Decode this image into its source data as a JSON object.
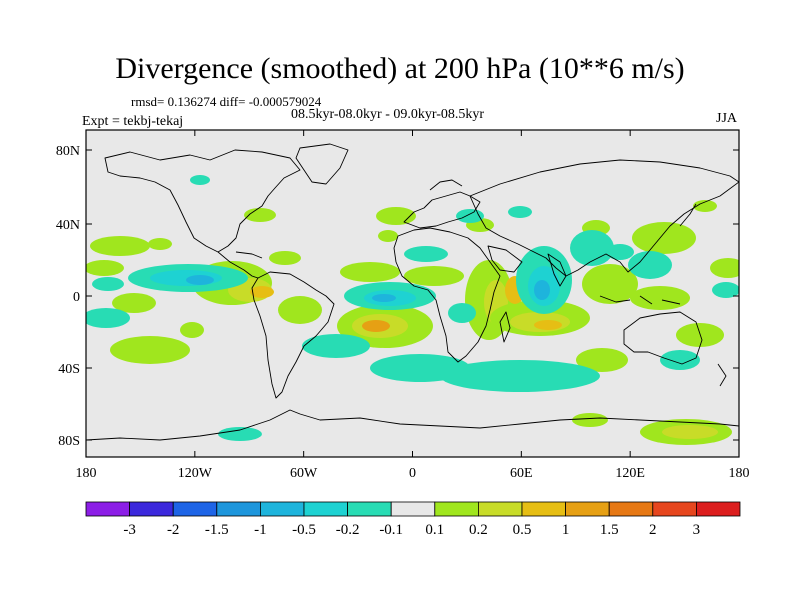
{
  "title": "Divergence (smoothed) at 200 hPa (10**6 m/s)",
  "stats_label": "rmsd= 0.136274 diff= -0.000579024",
  "period_label": "08.5kyr-08.0kyr - 09.0kyr-08.5kyr",
  "experiment_label": "Expt = tekbj-tekaj",
  "season_label": "JJA",
  "map": {
    "lat_ticks": [
      "80N",
      "40N",
      "0",
      "40S",
      "80S"
    ],
    "lon_ticks": [
      "180",
      "120W",
      "60W",
      "0",
      "60E",
      "120E",
      "180"
    ],
    "ocean_color": "#e8e8e8",
    "coastline_color": "#000000"
  },
  "colorbar": {
    "labels": [
      "-3",
      "-2",
      "-1.5",
      "-1",
      "-0.5",
      "-0.2",
      "-0.1",
      "0.1",
      "0.2",
      "0.5",
      "1",
      "1.5",
      "2",
      "3"
    ],
    "colors": [
      "#8c1ee6",
      "#3c28dc",
      "#1e64e6",
      "#1e96dc",
      "#1eb4dc",
      "#1ed2d2",
      "#28dcb4",
      "#e8e8e8",
      "#a0e61e",
      "#c8dc28",
      "#e6be14",
      "#e6a014",
      "#e67814",
      "#e6461e",
      "#dc1e1e"
    ]
  }
}
